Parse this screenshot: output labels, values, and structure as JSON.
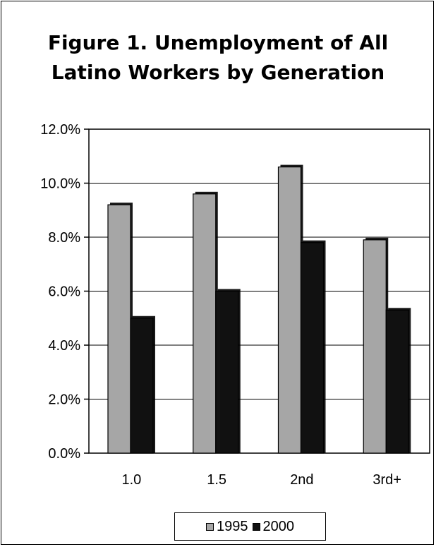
{
  "chart_data": {
    "type": "bar",
    "title": [
      "Figure 1. Unemployment of All",
      "Latino Workers by Generation"
    ],
    "categories": [
      "1.0",
      "1.5",
      "2nd",
      "3rd+"
    ],
    "series": [
      {
        "name": "1995",
        "values": [
          9.2,
          9.6,
          10.6,
          7.9
        ],
        "color": "#a6a6a6"
      },
      {
        "name": "2000",
        "values": [
          5.0,
          6.0,
          7.8,
          5.3
        ],
        "color": "#111111"
      }
    ],
    "ylim": [
      0,
      12
    ],
    "yticks": [
      "0.0%",
      "2.0%",
      "4.0%",
      "6.0%",
      "8.0%",
      "10.0%",
      "12.0%"
    ],
    "ytick_values": [
      0,
      2,
      4,
      6,
      8,
      10,
      12
    ],
    "grid": true,
    "legend": "bottom"
  }
}
